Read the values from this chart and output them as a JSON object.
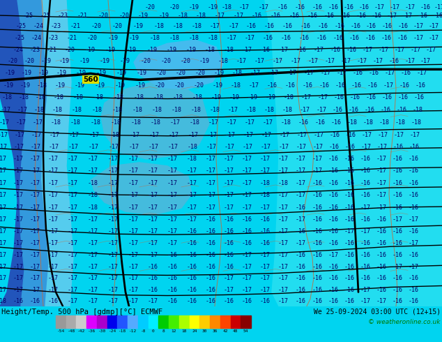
{
  "title_left": "Height/Temp. 500 hPa [gdmp][°C] ECMWF",
  "title_right": "We 25-09-2024 03:00 UTC (12+15)",
  "copyright": "© weatheronline.co.uk",
  "colorbar_values": [
    -54,
    -48,
    -42,
    -36,
    -30,
    -24,
    -18,
    -12,
    -8,
    0,
    8,
    12,
    18,
    24,
    30,
    36,
    42,
    48,
    54
  ],
  "colorbar_colors": [
    "#999999",
    "#aaaaaa",
    "#cccccc",
    "#dd00ff",
    "#aa00cc",
    "#0000ee",
    "#2255ff",
    "#55aaff",
    "#00ccff",
    "#00eeff",
    "#00cc00",
    "#44ee00",
    "#aaff00",
    "#ffff00",
    "#ffcc00",
    "#ff8800",
    "#ff4400",
    "#cc0000",
    "#880000"
  ],
  "bg_color": "#00d4f0",
  "fig_width": 6.34,
  "fig_height": 4.9,
  "dpi": 100,
  "num_color": "#000066",
  "line_color": "#000000",
  "coast_color": "#cc6633",
  "label_560_color": "#cccc00",
  "bottom_bg": "#b0b8c0",
  "bottom_text_color": "#000000",
  "copyright_color": "#007700"
}
